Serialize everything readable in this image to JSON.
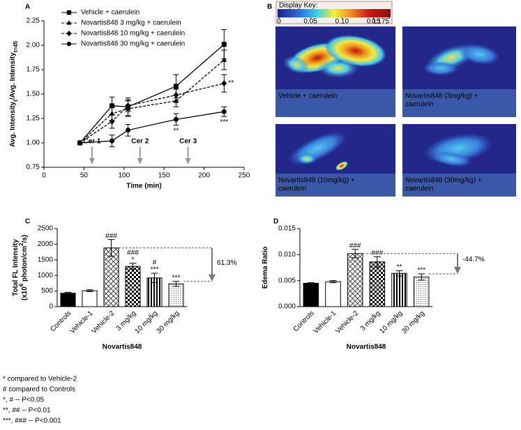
{
  "chart_data": [
    {
      "type": "line",
      "panel": "A",
      "x_label": "Time (min)",
      "y_label_lines": [
        [
          {
            "text": "Avg. Intensity"
          },
          {
            "text": "t",
            "sub": true
          },
          {
            "text": "/Avg. Intensity"
          },
          {
            "text": "t=45",
            "sub": true
          }
        ]
      ],
      "x": [
        45,
        85,
        105,
        165,
        225
      ],
      "series": [
        {
          "name": "Vehicle + caerulein",
          "color": "#000000",
          "marker": "square",
          "line_style": "solid",
          "values": [
            1.0,
            1.38,
            1.37,
            1.58,
            2.01
          ],
          "errors": [
            0,
            0.09,
            0.09,
            0.12,
            0.15
          ],
          "significance": [
            null,
            null,
            null,
            null,
            null
          ]
        },
        {
          "name": "Novartis848 3 mg/kg + caerulein",
          "color": "#000000",
          "marker": "triangle",
          "line_style": "dashed",
          "values": [
            1.0,
            1.3,
            1.35,
            1.43,
            1.85
          ],
          "errors": [
            0,
            0.07,
            0.08,
            0.06,
            0.1
          ],
          "significance": [
            null,
            null,
            null,
            null,
            null
          ]
        },
        {
          "name": "Novartis848 10 mg/kg + caerulein",
          "color": "#000000",
          "marker": "diamond",
          "line_style": "dashed",
          "values": [
            1.0,
            1.22,
            1.38,
            1.49,
            1.61
          ],
          "errors": [
            0,
            0.07,
            0.06,
            0.06,
            0.09
          ],
          "significance": [
            null,
            null,
            null,
            null,
            "**"
          ]
        },
        {
          "name": "Novartis848 30 mg/kg + caerulein",
          "color": "#000000",
          "marker": "circle",
          "line_style": "solid",
          "values": [
            1.0,
            1.02,
            1.13,
            1.24,
            1.32
          ],
          "errors": [
            0,
            0.06,
            0.06,
            0.06,
            0.05
          ],
          "significance": [
            null,
            null,
            null,
            "**",
            "***"
          ]
        }
      ],
      "arrows": [
        {
          "label": "Cer 1",
          "x": 60
        },
        {
          "label": "Cer 2",
          "x": 120
        },
        {
          "label": "Cer 3",
          "x": 180
        }
      ],
      "arrow_color": "#999999",
      "xlim": [
        0,
        250
      ],
      "xticks": [
        0,
        50,
        100,
        150,
        200,
        250
      ],
      "ylim": [
        0.75,
        2.25
      ],
      "yticks": [
        {
          "value": 0.75,
          "label": "0.75"
        },
        {
          "value": 1.0,
          "label": "1.00"
        },
        {
          "value": 1.25,
          "label": "1.25"
        },
        {
          "value": 1.5,
          "label": "1.50"
        },
        {
          "value": 1.75,
          "label": "1.75"
        },
        {
          "value": 2.0,
          "label": "2.00"
        },
        {
          "value": 2.25,
          "label": "2.25"
        }
      ],
      "legend": "upper left"
    },
    {
      "type": "bar",
      "panel": "C",
      "x_label": "Novartis848",
      "y_label_lines": [
        [
          {
            "text": "Total FL Intensity"
          }
        ],
        [
          {
            "text": "(x10"
          },
          {
            "text": "6",
            "sup": true
          },
          {
            "text": " photon/cm"
          },
          {
            "text": "2",
            "sup": true
          },
          {
            "text": "/s)"
          }
        ]
      ],
      "categories": [
        "Controls",
        "Vehicle-1",
        "Vehicle-2",
        "3 mg/kg",
        "10 mg/kg",
        "30 mg/kg"
      ],
      "values": [
        430,
        510,
        1880,
        1290,
        920,
        730
      ],
      "errors": [
        30,
        30,
        270,
        100,
        150,
        80
      ],
      "patterns": [
        "solid",
        "empty",
        "crosshatch",
        "checker",
        "vertical-stripes",
        "dots"
      ],
      "significance": [
        null,
        null,
        [
          "###"
        ],
        [
          "###",
          "*"
        ],
        [
          "#",
          "***"
        ],
        [
          "***"
        ]
      ],
      "annotation": "61.3%",
      "ylim": [
        0,
        2500
      ],
      "yticks": [
        0,
        500,
        1000,
        1500,
        2000,
        2500
      ]
    },
    {
      "type": "bar",
      "panel": "D",
      "x_label": "Novartis848",
      "y_label_lines": [
        [
          {
            "text": "Edema Ratio"
          }
        ]
      ],
      "categories": [
        "Controls",
        "Vehicle-1",
        "Vehicle-2",
        "3 mg/kg",
        "10 mg/kg",
        "30 mg/kg"
      ],
      "values": [
        0.0045,
        0.0048,
        0.0102,
        0.0086,
        0.0064,
        0.0057
      ],
      "errors": [
        0.0001,
        0.0002,
        0.0008,
        0.001,
        0.0005,
        0.0006
      ],
      "patterns": [
        "solid",
        "empty",
        "crosshatch",
        "checker",
        "vertical-stripes",
        "dots"
      ],
      "significance": [
        null,
        null,
        [
          "###"
        ],
        [
          "###"
        ],
        [
          "**"
        ],
        [
          "***"
        ]
      ],
      "annotation": "-44.7%",
      "ylim": [
        0,
        0.015
      ],
      "yticks": [
        {
          "value": 0,
          "label": "0.000"
        },
        {
          "value": 0.005,
          "label": "0.005"
        },
        {
          "value": 0.01,
          "label": "0.010"
        },
        {
          "value": 0.015,
          "label": "0.015"
        }
      ]
    }
  ],
  "panel_b": {
    "panel": "B",
    "key_title": "Display Key:",
    "key_range": [
      0,
      0.175
    ],
    "key_ticks": [
      0,
      0.05,
      {
        "value": 0.1,
        "label": "0.10"
      },
      0.15,
      0.175
    ],
    "images": [
      {
        "caption": [
          "Vehicle + caerulein"
        ]
      },
      {
        "caption": [
          "Novartis848 (3mg/kg) +",
          "caerulein"
        ]
      },
      {
        "caption": [
          "Novartis848 (10mg/kg) +",
          "caerulein"
        ]
      },
      {
        "caption": [
          "Novartis848 (30mg/kg) +",
          "caerulein"
        ]
      }
    ]
  },
  "footnotes": [
    "* compared to Vehicle-2",
    "# compared to Controls",
    "*, # -- P<0.05",
    "**, ## -- P<0.01",
    "***, ### -- P<0.001"
  ]
}
